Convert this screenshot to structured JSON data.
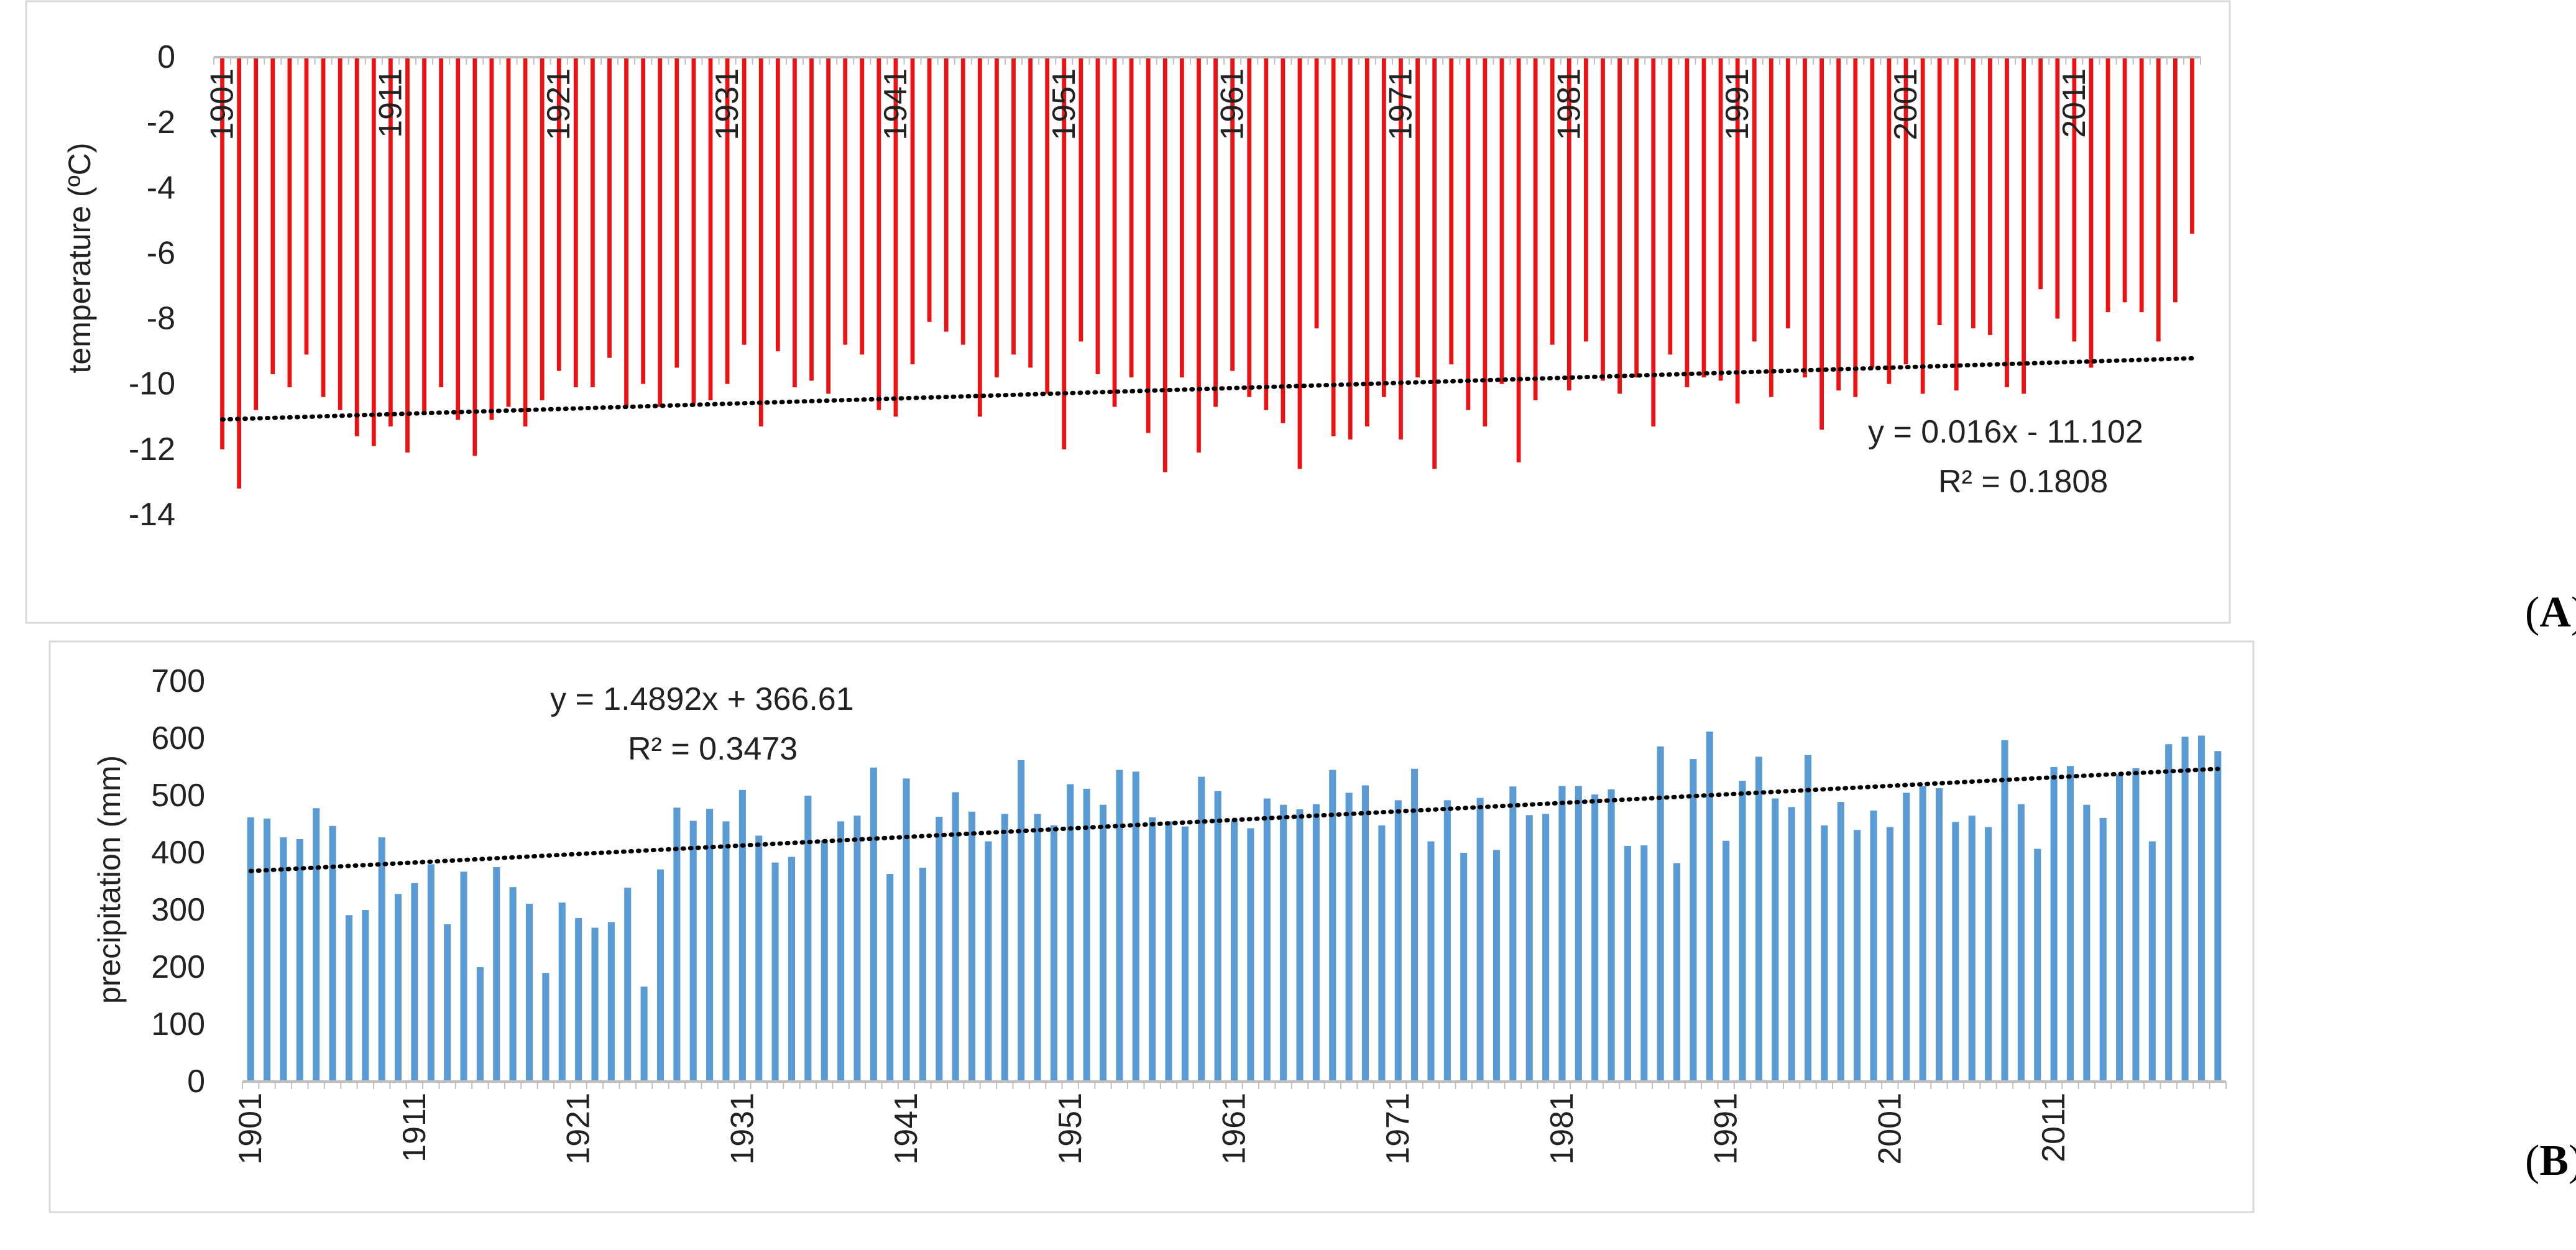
{
  "panel_labels": {
    "a": {
      "open": "(",
      "letter": "A",
      "close": ")"
    },
    "b": {
      "open": "(",
      "letter": "B",
      "close": ")"
    }
  },
  "colors": {
    "temperature_bars": "#ee1111",
    "precipitation_bars": "#5b9bd5",
    "trendline": "#000000",
    "frame": "#d9d9d9",
    "axis": "#bfbfbf",
    "text": "#222222"
  },
  "chart_data": [
    {
      "id": "temperature",
      "type": "bar",
      "ylabel": "temperature (ºC)",
      "xlabel": "",
      "title": "",
      "ylim": [
        -14,
        0
      ],
      "yticks": [
        "0",
        "-2",
        "-4",
        "-6",
        "-8",
        "-10",
        "-12",
        "-14"
      ],
      "ytick_values": [
        0,
        -2,
        -4,
        -6,
        -8,
        -10,
        -12,
        -14
      ],
      "grid": false,
      "x_start": 1901,
      "x_tick_labels": [
        "1901",
        "1911",
        "1921",
        "1931",
        "1941",
        "1951",
        "1961",
        "1971",
        "1981",
        "1991",
        "2001",
        "2011"
      ],
      "values": [
        -12.0,
        -13.2,
        -10.8,
        -9.7,
        -10.1,
        -9.1,
        -10.4,
        -10.8,
        -11.6,
        -11.9,
        -11.3,
        -12.1,
        -10.9,
        -10.1,
        -11.1,
        -12.2,
        -11.1,
        -10.7,
        -11.3,
        -10.5,
        -9.6,
        -10.1,
        -10.1,
        -9.2,
        -10.7,
        -10.0,
        -10.7,
        -9.5,
        -10.6,
        -10.5,
        -10.0,
        -8.8,
        -11.3,
        -9.0,
        -10.1,
        -9.9,
        -10.3,
        -8.8,
        -9.1,
        -10.8,
        -11.0,
        -9.4,
        -8.1,
        -8.4,
        -8.8,
        -11.0,
        -9.8,
        -9.1,
        -9.5,
        -10.3,
        -12.0,
        -8.7,
        -9.7,
        -10.7,
        -9.8,
        -11.5,
        -12.7,
        -9.8,
        -12.1,
        -10.7,
        -9.6,
        -10.4,
        -10.8,
        -11.2,
        -12.6,
        -8.3,
        -11.6,
        -11.7,
        -11.3,
        -10.4,
        -11.7,
        -9.8,
        -12.6,
        -9.4,
        -10.8,
        -11.3,
        -10.0,
        -12.4,
        -10.5,
        -8.8,
        -10.2,
        -8.7,
        -9.9,
        -10.3,
        -9.8,
        -11.3,
        -9.1,
        -10.1,
        -9.8,
        -9.9,
        -10.6,
        -8.7,
        -10.4,
        -8.3,
        -9.8,
        -11.4,
        -10.2,
        -10.4,
        -9.5,
        -10.0,
        -9.4,
        -10.3,
        -8.2,
        -10.2,
        -8.3,
        -8.5,
        -10.1,
        -10.3,
        -7.1,
        -8.0,
        -8.7,
        -9.5,
        -7.8,
        -7.5,
        -7.8,
        -8.7,
        -7.5,
        -5.4
      ],
      "trendline": {
        "slope": 0.016,
        "intercept": -11.102,
        "equation": "y = 0.016x - 11.102",
        "r2": "R² = 0.1808"
      }
    },
    {
      "id": "precipitation",
      "type": "bar",
      "ylabel": "precipitation (mm)",
      "xlabel": "",
      "title": "",
      "ylim": [
        0,
        700
      ],
      "yticks": [
        "700",
        "600",
        "500",
        "400",
        "300",
        "200",
        "100",
        "0"
      ],
      "ytick_values": [
        700,
        600,
        500,
        400,
        300,
        200,
        100,
        0
      ],
      "grid": false,
      "x_start": 1901,
      "x_tick_labels": [
        "1901",
        "1911",
        "1921",
        "1931",
        "1941",
        "1951",
        "1961",
        "1971",
        "1981",
        "1991",
        "2001",
        "2011"
      ],
      "values": [
        462,
        460,
        427,
        424,
        478,
        447,
        291,
        300,
        427,
        328,
        347,
        380,
        275,
        367,
        200,
        375,
        340,
        311,
        190,
        313,
        286,
        269,
        279,
        339,
        166,
        371,
        479,
        456,
        477,
        455,
        510,
        430,
        383,
        393,
        500,
        422,
        455,
        465,
        549,
        363,
        530,
        374,
        463,
        506,
        472,
        420,
        468,
        562,
        468,
        448,
        520,
        512,
        484,
        545,
        542,
        462,
        455,
        446,
        533,
        508,
        456,
        443,
        495,
        484,
        476,
        485,
        545,
        505,
        518,
        448,
        492,
        547,
        420,
        492,
        400,
        496,
        405,
        516,
        466,
        468,
        517,
        517,
        502,
        511,
        412,
        413,
        586,
        382,
        564,
        612,
        421,
        526,
        568,
        495,
        480,
        571,
        448,
        489,
        440,
        474,
        445,
        505,
        517,
        513,
        454,
        465,
        445,
        597,
        485,
        407,
        550,
        552,
        484,
        461,
        537,
        548,
        420,
        590,
        603,
        605,
        578
      ],
      "trendline": {
        "slope": 1.4892,
        "intercept": 366.61,
        "equation": "y = 1.4892x + 366.61",
        "r2": "R² = 0.3473"
      }
    }
  ]
}
